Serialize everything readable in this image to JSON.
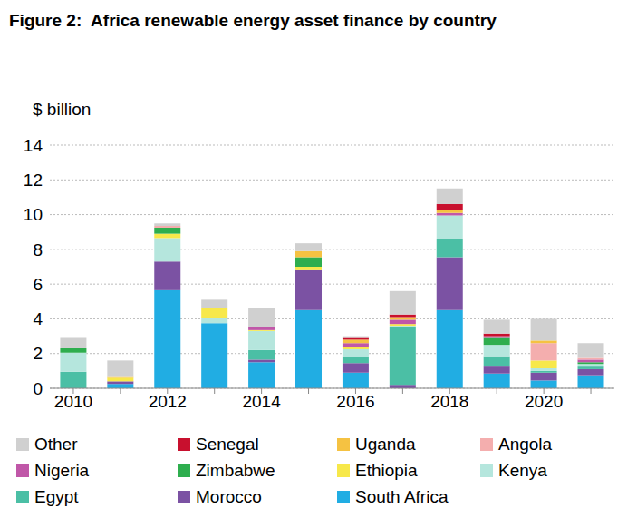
{
  "chart_data": {
    "type": "bar",
    "title": "Figure 2:  Africa renewable energy asset finance by country",
    "y_label": "$ billion",
    "stacked": true,
    "grid": true,
    "legend": "bottom",
    "categories": [
      "2010",
      null,
      "2012",
      null,
      "2014",
      null,
      "2016",
      null,
      "2018",
      null,
      "2020",
      null
    ],
    "ylim": [
      0,
      14
    ],
    "yticks": [
      0,
      2,
      4,
      6,
      8,
      10,
      12,
      14
    ],
    "series": [
      {
        "name": "South Africa",
        "color": "#21ade3",
        "values": [
          0,
          0.25,
          5.65,
          3.75,
          1.5,
          4.5,
          0.9,
          0,
          4.5,
          0.85,
          0.45,
          0.75
        ]
      },
      {
        "name": "Morocco",
        "color": "#7b52a3",
        "values": [
          0,
          0.15,
          1.65,
          0,
          0.15,
          2.3,
          0.55,
          0.2,
          3.05,
          0.45,
          0.45,
          0.35
        ]
      },
      {
        "name": "Egypt",
        "color": "#4bbfa5",
        "values": [
          0.95,
          0,
          0,
          0,
          0.55,
          0,
          0.35,
          3.3,
          1.05,
          0.55,
          0.1,
          0.2
        ]
      },
      {
        "name": "Kenya",
        "color": "#b5e6dd",
        "values": [
          1.1,
          0,
          1.35,
          0.3,
          1.1,
          0,
          0.45,
          0.1,
          1.35,
          0.65,
          0.15,
          0.1
        ]
      },
      {
        "name": "Ethiopia",
        "color": "#f7e84a",
        "values": [
          0,
          0.2,
          0.25,
          0.6,
          0.05,
          0.2,
          0.1,
          0.1,
          0,
          0,
          0.45,
          0
        ]
      },
      {
        "name": "Zimbabwe",
        "color": "#2eae4e",
        "values": [
          0.25,
          0,
          0.35,
          0,
          0,
          0.55,
          0,
          0,
          0,
          0.4,
          0,
          0.1
        ]
      },
      {
        "name": "Nigeria",
        "color": "#c057a8",
        "values": [
          0,
          0,
          0,
          0,
          0.2,
          0,
          0.25,
          0.25,
          0.15,
          0.1,
          0,
          0.15
        ]
      },
      {
        "name": "Angola",
        "color": "#f4aeae",
        "values": [
          0,
          0,
          0.1,
          0,
          0,
          0,
          0,
          0,
          0,
          0,
          1.0,
          0.1
        ]
      },
      {
        "name": "Uganda",
        "color": "#f5c242",
        "values": [
          0,
          0.05,
          0,
          0,
          0,
          0.35,
          0.2,
          0.15,
          0.15,
          0,
          0.15,
          0
        ]
      },
      {
        "name": "Senegal",
        "color": "#c8102e",
        "values": [
          0,
          0,
          0,
          0,
          0,
          0,
          0.1,
          0.15,
          0.35,
          0.15,
          0,
          0
        ]
      },
      {
        "name": "Other",
        "color": "#d0d0d0",
        "values": [
          0.6,
          0.95,
          0.15,
          0.45,
          1.05,
          0.45,
          0.1,
          1.35,
          0.9,
          0.8,
          1.25,
          0.85
        ]
      }
    ]
  }
}
